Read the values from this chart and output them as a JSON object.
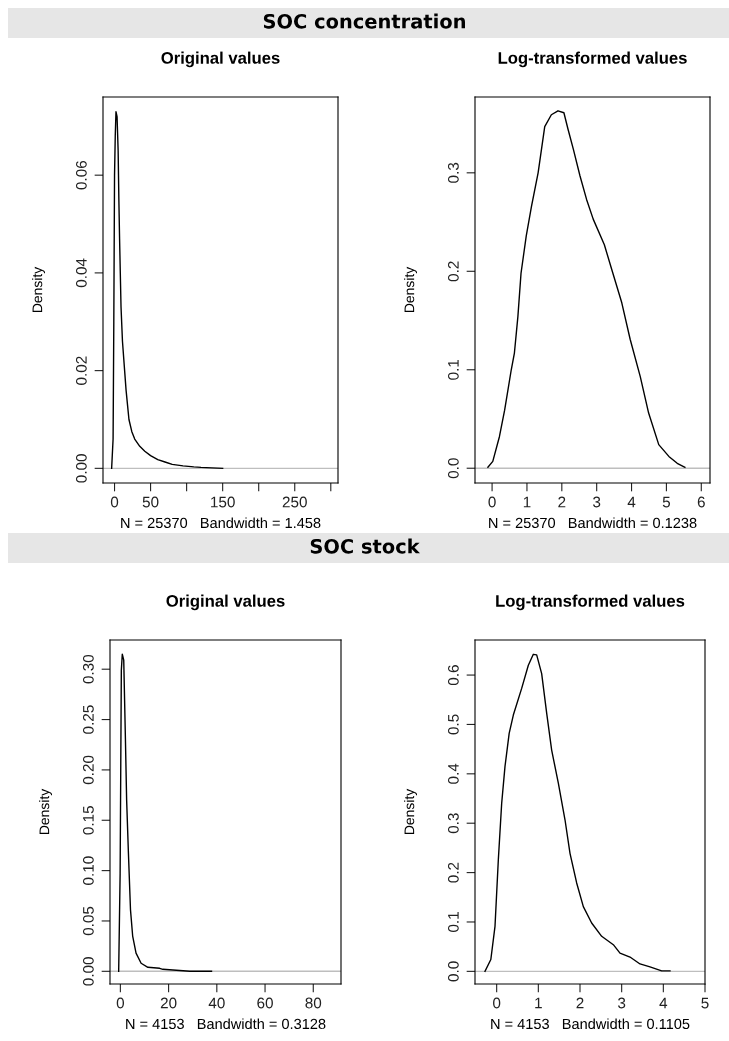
{
  "chart_data": [
    {
      "type": "line",
      "title": "Original values",
      "xlabel": "N = 25370   Bandwidth = 1.458",
      "ylabel": "Density",
      "annotations": [
        "SOC concentration"
      ],
      "x": [
        -4,
        -2,
        -1,
        0,
        1,
        2,
        3.5,
        5,
        6,
        7,
        8,
        9,
        11,
        14,
        16,
        18,
        20,
        24,
        28,
        35,
        42,
        50,
        60,
        70,
        80,
        95,
        110,
        120,
        135,
        150
      ],
      "series": [
        {
          "color": "#000000",
          "values": [
            0,
            0.006,
            0.03,
            0.06,
            0.068,
            0.073,
            0.072,
            0.065,
            0.055,
            0.047,
            0.04,
            0.033,
            0.026,
            0.02,
            0.016,
            0.013,
            0.01,
            0.0075,
            0.006,
            0.0045,
            0.0035,
            0.0026,
            0.0018,
            0.0013,
            0.0008,
            0.0005,
            0.0003,
            0.0002,
            0.0001,
            0
          ]
        }
      ],
      "xlim": [
        -16,
        310
      ],
      "ylim": [
        -0.003,
        0.076
      ],
      "xticks": [
        0,
        50,
        {
          "value": 100,
          "label": null
        },
        150,
        {
          "value": 200,
          "label": null
        },
        250,
        {
          "value": 300,
          "label": null
        }
      ],
      "yticks": [
        {
          "value": 0,
          "label": "0.00"
        },
        {
          "value": 0.02,
          "label": "0.02"
        },
        {
          "value": 0.04,
          "label": "0.04"
        },
        {
          "value": 0.06,
          "label": "0.06"
        }
      ],
      "ref_lines": [
        {
          "axis": "y",
          "value": 0,
          "color": "#bebebe"
        }
      ],
      "grid": false,
      "legend": false,
      "line_style": "solid",
      "marker": "none"
    },
    {
      "type": "line",
      "title": "Log-transformed values",
      "xlabel": "N = 25370   Bandwidth = 0.1238",
      "ylabel": "Density",
      "x": [
        -0.12,
        0.02,
        0.21,
        0.36,
        0.55,
        0.64,
        0.74,
        0.83,
        0.98,
        1.13,
        1.32,
        1.51,
        1.7,
        1.89,
        2.06,
        2.18,
        2.33,
        2.52,
        2.71,
        2.9,
        3.22,
        3.43,
        3.72,
        3.96,
        4.25,
        4.49,
        4.78,
        5.07,
        5.31,
        5.53
      ],
      "series": [
        {
          "color": "#000000",
          "values": [
            0.001,
            0.007,
            0.032,
            0.059,
            0.1,
            0.117,
            0.154,
            0.198,
            0.236,
            0.266,
            0.3,
            0.347,
            0.359,
            0.363,
            0.361,
            0.344,
            0.324,
            0.297,
            0.273,
            0.253,
            0.227,
            0.202,
            0.168,
            0.131,
            0.093,
            0.056,
            0.024,
            0.012,
            0.005,
            0.001
          ]
        }
      ],
      "xlim": [
        -0.49,
        6.25
      ],
      "ylim": [
        -0.015,
        0.377
      ],
      "xticks": [
        0,
        1,
        2,
        3,
        4,
        5,
        6
      ],
      "yticks": [
        {
          "value": 0,
          "label": "0.0"
        },
        0.1,
        0.2,
        0.3
      ],
      "ref_lines": [
        {
          "axis": "y",
          "value": 0,
          "color": "#bebebe"
        }
      ],
      "grid": false,
      "legend": false,
      "line_style": "solid",
      "marker": "none"
    },
    {
      "type": "line",
      "title": "Original values",
      "xlabel": "N = 4153   Bandwidth = 0.3128",
      "ylabel": "Density",
      "annotations": [
        "SOC stock"
      ],
      "x": [
        -0.7,
        -0.1,
        0.4,
        0.8,
        1.4,
        2.1,
        2.6,
        3.3,
        4.2,
        5.1,
        6.5,
        8.6,
        11.4,
        16.3,
        17.6,
        23.2,
        28.8,
        37.8
      ],
      "series": [
        {
          "color": "#000000",
          "values": [
            0,
            0.097,
            0.299,
            0.315,
            0.309,
            0.23,
            0.17,
            0.12,
            0.061,
            0.035,
            0.018,
            0.008,
            0.004,
            0.003,
            0.002,
            0.001,
            0.0,
            0
          ]
        }
      ],
      "xlim": [
        -4.3,
        91.5
      ],
      "ylim": [
        -0.0126,
        0.329
      ],
      "xticks": [
        0,
        20,
        40,
        60,
        80
      ],
      "yticks": [
        {
          "value": 0,
          "label": "0.00"
        },
        {
          "value": 0.05,
          "label": "0.05"
        },
        {
          "value": 0.1,
          "label": "0.10"
        },
        {
          "value": 0.15,
          "label": "0.15"
        },
        {
          "value": 0.2,
          "label": "0.20"
        },
        {
          "value": 0.25,
          "label": "0.25"
        },
        {
          "value": 0.3,
          "label": "0.30"
        }
      ],
      "ref_lines": [
        {
          "axis": "y",
          "value": 0,
          "color": "#bebebe"
        }
      ],
      "grid": false,
      "legend": false,
      "line_style": "solid",
      "marker": "none"
    },
    {
      "type": "line",
      "title": "Log-transformed values",
      "xlabel": "N = 4153   Bandwidth = 0.1105",
      "ylabel": "Density",
      "x": [
        -0.28,
        -0.14,
        -0.04,
        0.04,
        0.12,
        0.2,
        0.3,
        0.4,
        0.6,
        0.76,
        0.88,
        0.96,
        1.08,
        1.2,
        1.32,
        1.48,
        1.64,
        1.76,
        1.92,
        2.08,
        2.28,
        2.52,
        2.8,
        2.96,
        3.2,
        3.44,
        3.68,
        3.96,
        4.16
      ],
      "series": [
        {
          "color": "#000000",
          "values": [
            0,
            0.024,
            0.091,
            0.226,
            0.34,
            0.415,
            0.482,
            0.519,
            0.573,
            0.62,
            0.642,
            0.641,
            0.603,
            0.523,
            0.448,
            0.381,
            0.307,
            0.239,
            0.179,
            0.131,
            0.098,
            0.071,
            0.054,
            0.037,
            0.029,
            0.015,
            0.009,
            0.001,
            0.001
          ]
        }
      ],
      "xlim": [
        -0.52,
        5.0
      ],
      "ylim": [
        -0.0256,
        0.671
      ],
      "xticks": [
        0,
        1,
        2,
        3,
        4,
        5
      ],
      "yticks": [
        {
          "value": 0,
          "label": "0.0"
        },
        0.1,
        0.2,
        0.3,
        0.4,
        0.5,
        0.6
      ],
      "ref_lines": [
        {
          "axis": "y",
          "value": 0,
          "color": "#bebebe"
        }
      ],
      "grid": false,
      "legend": false,
      "line_style": "solid",
      "marker": "none"
    }
  ]
}
